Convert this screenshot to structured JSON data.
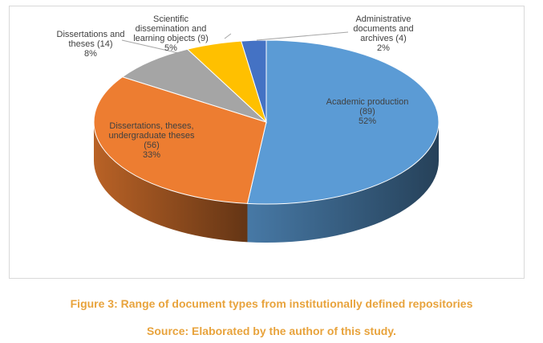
{
  "chart_data": {
    "type": "pie",
    "style": "3d",
    "title": "",
    "slices": [
      {
        "label_lines": [
          "Academic production",
          "(89)",
          "52%"
        ],
        "name": "Academic production",
        "value": 89,
        "percent": 52,
        "color": "#5b9bd5"
      },
      {
        "label_lines": [
          "Dissertations, theses,",
          "undergraduate theses",
          "(56)",
          "33%"
        ],
        "name": "Dissertations, theses, undergraduate theses",
        "value": 56,
        "percent": 33,
        "color": "#ed7d31"
      },
      {
        "label_lines": [
          "Dissertations and",
          "theses (14)",
          "8%"
        ],
        "name": "Dissertations and theses",
        "value": 14,
        "percent": 8,
        "color": "#a5a5a5"
      },
      {
        "label_lines": [
          "Scientific",
          "dissemination and",
          "learning objects (9)",
          "5%"
        ],
        "name": "Scientific dissemination and learning objects",
        "value": 9,
        "percent": 5,
        "color": "#ffc000"
      },
      {
        "label_lines": [
          "Administrative",
          "documents and",
          "archives (4)",
          "2%"
        ],
        "name": "Administrative documents and archives",
        "value": 4,
        "percent": 2,
        "color": "#4472c4"
      }
    ]
  },
  "caption": {
    "title": "Figure 3: Range of document types from institutionally defined repositories",
    "source": "Source: Elaborated by the author of this study."
  }
}
